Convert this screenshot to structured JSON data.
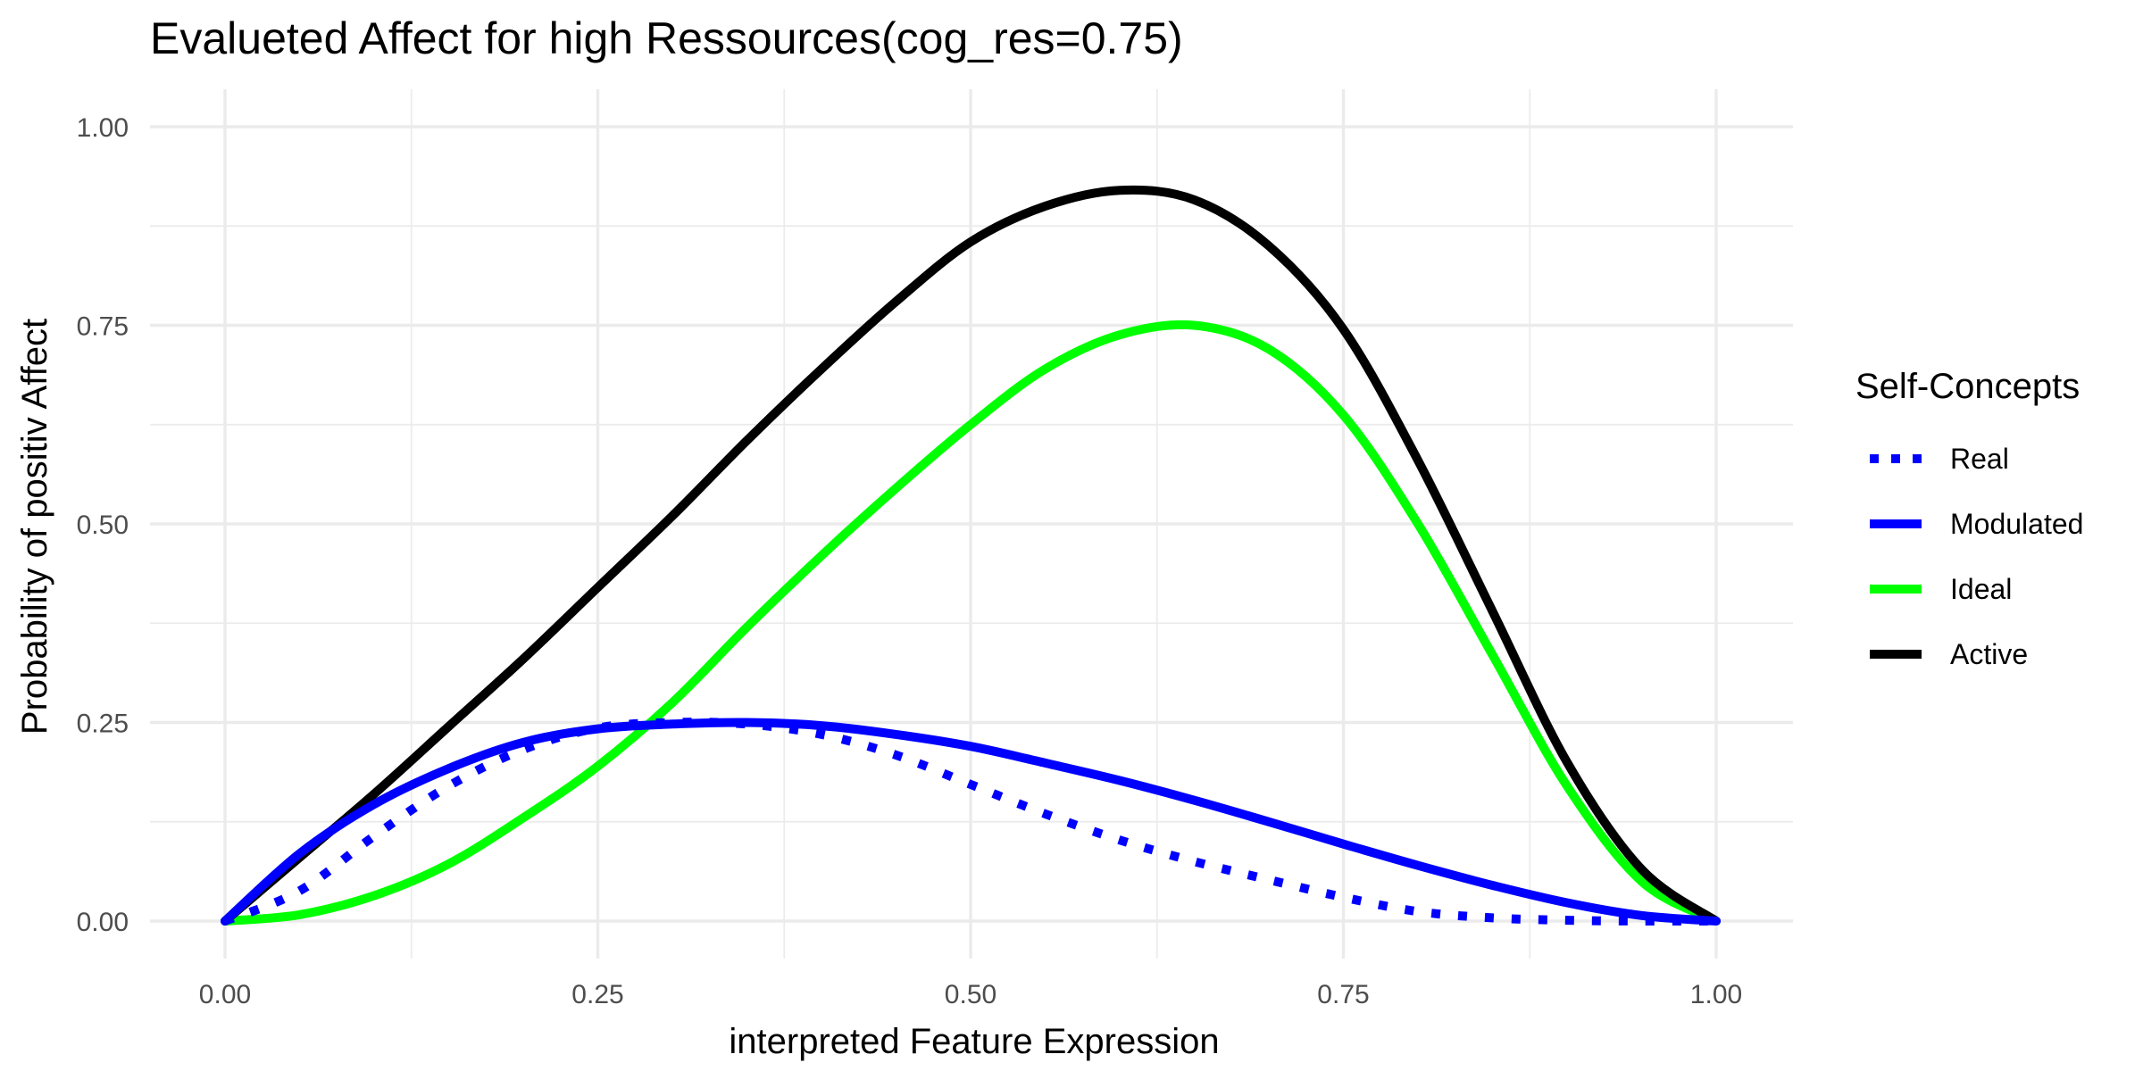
{
  "chart_data": {
    "type": "line",
    "title": "Evalueted Affect for high Ressources(cog_res=0.75)",
    "xlabel": "interpreted Feature Expression",
    "ylabel": "Probability of positiv Affect",
    "xlim": [
      0,
      1
    ],
    "ylim": [
      0,
      1
    ],
    "x_ticks": [
      "0.00",
      "0.25",
      "0.50",
      "0.75",
      "1.00"
    ],
    "y_ticks": [
      "0.00",
      "0.25",
      "0.50",
      "0.75",
      "1.00"
    ],
    "grid": true,
    "legend": {
      "title": "Self-Concepts",
      "position": "right"
    },
    "x": [
      0,
      0.05,
      0.1,
      0.15,
      0.2,
      0.25,
      0.3,
      0.35,
      0.4,
      0.45,
      0.5,
      0.55,
      0.6,
      0.65,
      0.7,
      0.75,
      0.8,
      0.85,
      0.9,
      0.95,
      1
    ],
    "series": [
      {
        "name": "Real",
        "color": "#0000ff",
        "linestyle": "dotted",
        "values": [
          0,
          0.038,
          0.107,
          0.17,
          0.216,
          0.243,
          0.25,
          0.248,
          0.235,
          0.209,
          0.172,
          0.135,
          0.102,
          0.075,
          0.052,
          0.03,
          0.012,
          0.004,
          0.001,
          0,
          0
        ]
      },
      {
        "name": "Modulated",
        "color": "#0000ff",
        "linestyle": "solid",
        "values": [
          0,
          0.085,
          0.147,
          0.192,
          0.225,
          0.242,
          0.248,
          0.25,
          0.246,
          0.235,
          0.22,
          0.199,
          0.177,
          0.152,
          0.125,
          0.097,
          0.07,
          0.045,
          0.023,
          0.007,
          0
        ]
      },
      {
        "name": "Ideal",
        "color": "#00ff00",
        "linestyle": "solid",
        "values": [
          0,
          0.008,
          0.032,
          0.072,
          0.13,
          0.195,
          0.275,
          0.37,
          0.46,
          0.545,
          0.625,
          0.695,
          0.738,
          0.75,
          0.72,
          0.637,
          0.5,
          0.335,
          0.17,
          0.05,
          0
        ]
      },
      {
        "name": "Active",
        "color": "#000000",
        "linestyle": "solid",
        "values": [
          0,
          0.08,
          0.16,
          0.245,
          0.33,
          0.42,
          0.51,
          0.605,
          0.695,
          0.78,
          0.855,
          0.9,
          0.92,
          0.908,
          0.85,
          0.745,
          0.58,
          0.39,
          0.2,
          0.065,
          0
        ]
      }
    ]
  }
}
